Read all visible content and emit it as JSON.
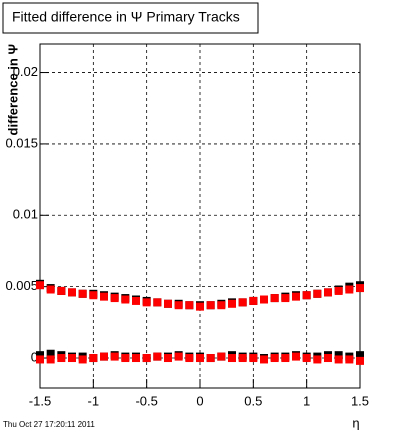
{
  "chart_data": {
    "type": "scatter",
    "title": "Fitted difference in Ψ   Primary Tracks",
    "y_label": "difference in Ψ",
    "x_label": "η",
    "footer": "Thu Oct 27 17:20:11 2011",
    "x": [
      -1.5,
      -1.4,
      -1.3,
      -1.2,
      -1.1,
      -1.0,
      -0.9,
      -0.8,
      -0.7,
      -0.6,
      -0.5,
      -0.4,
      -0.3,
      -0.2,
      -0.1,
      0.0,
      0.1,
      0.2,
      0.3,
      0.4,
      0.5,
      0.6,
      0.7,
      0.8,
      0.9,
      1.0,
      1.1,
      1.2,
      1.3,
      1.4,
      1.5
    ],
    "series": [
      {
        "color": "#000000",
        "values": [
          0.0052,
          0.0049,
          0.0047,
          0.0046,
          0.0045,
          0.0045,
          0.0044,
          0.0043,
          0.0042,
          0.0041,
          0.004,
          0.0039,
          0.0038,
          0.0038,
          0.0037,
          0.0037,
          0.0037,
          0.0038,
          0.0039,
          0.0039,
          0.004,
          0.0041,
          0.0042,
          0.0043,
          0.0044,
          0.0044,
          0.0045,
          0.0046,
          0.0048,
          0.005,
          0.0051
        ]
      },
      {
        "color": "#ff0000",
        "values": [
          0.0051,
          0.0048,
          0.0047,
          0.0046,
          0.0045,
          0.0044,
          0.0043,
          0.0042,
          0.0041,
          0.004,
          0.0039,
          0.0039,
          0.0038,
          0.0037,
          0.0037,
          0.0036,
          0.0037,
          0.0037,
          0.0038,
          0.0039,
          0.004,
          0.0041,
          0.0042,
          0.0042,
          0.0043,
          0.0044,
          0.0045,
          0.0046,
          0.0047,
          0.0048,
          0.0049
        ]
      },
      {
        "color": "#000000",
        "values": [
          0.0002,
          0.0003,
          0.0002,
          0.0001,
          0.0001,
          0.0,
          0.0001,
          0.0002,
          0.0001,
          0.0001,
          0.0,
          0.0001,
          0.0001,
          0.0002,
          0.0001,
          0.0001,
          0.0,
          0.0001,
          0.0002,
          0.0001,
          0.0001,
          0.0,
          0.0001,
          0.0001,
          0.0002,
          0.0001,
          0.0001,
          0.0002,
          0.0002,
          0.0001,
          0.0002
        ]
      },
      {
        "color": "#ff0000",
        "values": [
          -0.0001,
          -0.0001,
          0.0,
          0.0,
          -0.0001,
          0.0,
          0.0001,
          0.0001,
          0.0,
          0.0,
          0.0,
          0.0001,
          0.0,
          0.0001,
          0.0,
          0.0,
          0.0,
          0.0001,
          0.0,
          0.0,
          0.0,
          -0.0001,
          0.0,
          0.0,
          0.0001,
          0.0,
          -0.0001,
          0.0,
          -0.0001,
          -0.0001,
          -0.0002
        ]
      }
    ],
    "xlim": [
      -1.5,
      1.5
    ],
    "ylim": [
      -0.0021,
      0.022
    ],
    "xticks": [
      -1.5,
      -1,
      -0.5,
      0,
      0.5,
      1,
      1.5
    ],
    "yticks": [
      0,
      0.005,
      0.01,
      0.015,
      0.02
    ],
    "grid": true
  }
}
